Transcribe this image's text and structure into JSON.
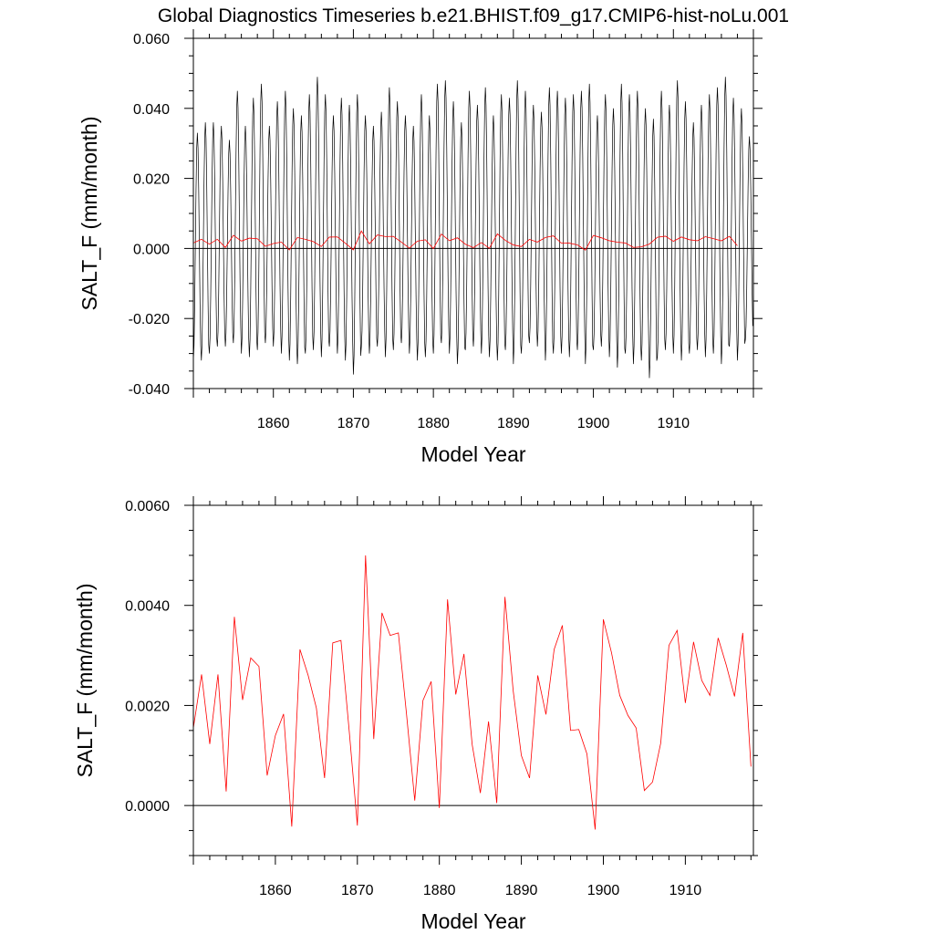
{
  "figure": {
    "title": "Global Diagnostics Timeseries b.e21.BHIST.f09_g17.CMIP6-hist-noLu.001"
  },
  "chart_data": [
    {
      "type": "line",
      "panel": "monthly-and-annual",
      "xlabel": "Model Year",
      "ylabel": "SALT_F (mm/month)",
      "xlim": [
        1850,
        1920
      ],
      "ylim": [
        -0.04,
        0.06
      ],
      "xticks": [
        1860,
        1870,
        1880,
        1890,
        1900,
        1910
      ],
      "xtick_labels": [
        "1860",
        "1870",
        "1880",
        "1890",
        "1900",
        "1910"
      ],
      "yticks": [
        -0.04,
        -0.02,
        0.0,
        0.02,
        0.04,
        0.06
      ],
      "ytick_labels": [
        "-0.040",
        "-0.020",
        "0.000",
        "0.020",
        "0.040",
        "0.060"
      ],
      "zero_line": 0,
      "series": [
        {
          "role": "monthly",
          "color": "#000000",
          "x_start": 1850.0,
          "x_step": 0.0833333,
          "seasonal_max": [
            0.033,
            0.036,
            0.036,
            0.035,
            0.031,
            0.045,
            0.035,
            0.043,
            0.047,
            0.035,
            0.042,
            0.045,
            0.04,
            0.038,
            0.044,
            0.049,
            0.044,
            0.038,
            0.043,
            0.041,
            0.044,
            0.038,
            0.035,
            0.039,
            0.046,
            0.042,
            0.038,
            0.035,
            0.044,
            0.038,
            0.047,
            0.048,
            0.042,
            0.036,
            0.045,
            0.041,
            0.046,
            0.038,
            0.044,
            0.043,
            0.048,
            0.045,
            0.041,
            0.039,
            0.046,
            0.045,
            0.043,
            0.044,
            0.045,
            0.047,
            0.038,
            0.044,
            0.04,
            0.047,
            0.044,
            0.045,
            0.04,
            0.037,
            0.045,
            0.041,
            0.048,
            0.042,
            0.036,
            0.041,
            0.044,
            0.046,
            0.049,
            0.043,
            0.04,
            0.032
          ],
          "seasonal_min": [
            -0.032,
            -0.032,
            -0.03,
            -0.028,
            -0.028,
            -0.027,
            -0.03,
            -0.031,
            -0.029,
            -0.027,
            -0.028,
            -0.03,
            -0.032,
            -0.033,
            -0.03,
            -0.029,
            -0.031,
            -0.028,
            -0.03,
            -0.032,
            -0.036,
            -0.028,
            -0.03,
            -0.028,
            -0.031,
            -0.029,
            -0.027,
            -0.03,
            -0.032,
            -0.031,
            -0.03,
            -0.027,
            -0.03,
            -0.033,
            -0.029,
            -0.028,
            -0.03,
            -0.031,
            -0.032,
            -0.029,
            -0.033,
            -0.03,
            -0.027,
            -0.028,
            -0.032,
            -0.03,
            -0.03,
            -0.031,
            -0.029,
            -0.033,
            -0.029,
            -0.028,
            -0.031,
            -0.034,
            -0.03,
            -0.033,
            -0.032,
            -0.037,
            -0.031,
            -0.029,
            -0.03,
            -0.032,
            -0.03,
            -0.029,
            -0.031,
            -0.03,
            -0.033,
            -0.028,
            -0.032,
            -0.026
          ]
        },
        {
          "role": "annual mean",
          "color": "#ff0000",
          "x": [
            1850,
            1851,
            1852,
            1853,
            1854,
            1855,
            1856,
            1857,
            1858,
            1859,
            1860,
            1861,
            1862,
            1863,
            1864,
            1865,
            1866,
            1867,
            1868,
            1869,
            1870,
            1871,
            1872,
            1873,
            1874,
            1875,
            1876,
            1877,
            1878,
            1879,
            1880,
            1881,
            1882,
            1883,
            1884,
            1885,
            1886,
            1887,
            1888,
            1889,
            1890,
            1891,
            1892,
            1893,
            1894,
            1895,
            1896,
            1897,
            1898,
            1899,
            1900,
            1901,
            1902,
            1903,
            1904,
            1905,
            1906,
            1907,
            1908,
            1909,
            1910,
            1911,
            1912,
            1913,
            1914,
            1915,
            1916,
            1917,
            1918
          ],
          "y": [
            0.00155,
            0.00262,
            0.00123,
            0.00262,
            0.00028,
            0.00377,
            0.00211,
            0.00295,
            0.00278,
            0.0006,
            0.0014,
            0.00183,
            -0.00042,
            0.00312,
            0.0026,
            0.00195,
            0.00055,
            0.00325,
            0.0033,
            0.0015,
            -0.0004,
            0.005,
            0.00133,
            0.00385,
            0.0034,
            0.00345,
            0.00182,
            0.0001,
            0.0021,
            0.00248,
            -5e-05,
            0.00412,
            0.00222,
            0.00303,
            0.00122,
            0.00025,
            0.00168,
            5e-05,
            0.00417,
            0.0023,
            0.001,
            0.00055,
            0.0026,
            0.00182,
            0.00312,
            0.0036,
            0.0015,
            0.00152,
            0.00103,
            -0.00048,
            0.00372,
            0.00305,
            0.0022,
            0.0018,
            0.00155,
            0.0003,
            0.00047,
            0.00125,
            0.0032,
            0.0035,
            0.00205,
            0.00327,
            0.0025,
            0.0022,
            0.00335,
            0.0028,
            0.00218,
            0.00345,
            0.00078
          ]
        }
      ]
    },
    {
      "type": "line",
      "panel": "annual",
      "xlabel": "Model Year",
      "ylabel": "SALT_F (mm/month)",
      "xlim": [
        1850,
        1918.3
      ],
      "ylim": [
        -0.001,
        0.006
      ],
      "xticks": [
        1860,
        1870,
        1880,
        1890,
        1900,
        1910
      ],
      "xtick_labels": [
        "1860",
        "1870",
        "1880",
        "1890",
        "1900",
        "1910"
      ],
      "yticks": [
        0.0,
        0.002,
        0.004,
        0.006
      ],
      "ytick_labels": [
        "0.0000",
        "0.0020",
        "0.0040",
        "0.0060"
      ],
      "zero_line": 0,
      "series": [
        {
          "role": "annual mean",
          "color": "#ff0000",
          "x": [
            1850,
            1851,
            1852,
            1853,
            1854,
            1855,
            1856,
            1857,
            1858,
            1859,
            1860,
            1861,
            1862,
            1863,
            1864,
            1865,
            1866,
            1867,
            1868,
            1869,
            1870,
            1871,
            1872,
            1873,
            1874,
            1875,
            1876,
            1877,
            1878,
            1879,
            1880,
            1881,
            1882,
            1883,
            1884,
            1885,
            1886,
            1887,
            1888,
            1889,
            1890,
            1891,
            1892,
            1893,
            1894,
            1895,
            1896,
            1897,
            1898,
            1899,
            1900,
            1901,
            1902,
            1903,
            1904,
            1905,
            1906,
            1907,
            1908,
            1909,
            1910,
            1911,
            1912,
            1913,
            1914,
            1915,
            1916,
            1917,
            1918
          ],
          "y": [
            0.00155,
            0.00262,
            0.00123,
            0.00262,
            0.00028,
            0.00377,
            0.00211,
            0.00295,
            0.00278,
            0.0006,
            0.0014,
            0.00183,
            -0.00042,
            0.00312,
            0.0026,
            0.00195,
            0.00055,
            0.00325,
            0.0033,
            0.0015,
            -0.0004,
            0.005,
            0.00133,
            0.00385,
            0.0034,
            0.00345,
            0.00182,
            0.0001,
            0.0021,
            0.00248,
            -5e-05,
            0.00412,
            0.00222,
            0.00303,
            0.00122,
            0.00025,
            0.00168,
            5e-05,
            0.00417,
            0.0023,
            0.001,
            0.00055,
            0.0026,
            0.00182,
            0.00312,
            0.0036,
            0.0015,
            0.00152,
            0.00103,
            -0.00048,
            0.00372,
            0.00305,
            0.0022,
            0.0018,
            0.00155,
            0.0003,
            0.00047,
            0.00125,
            0.0032,
            0.0035,
            0.00205,
            0.00327,
            0.0025,
            0.0022,
            0.00335,
            0.0028,
            0.00218,
            0.00345,
            0.00078
          ]
        }
      ]
    }
  ]
}
